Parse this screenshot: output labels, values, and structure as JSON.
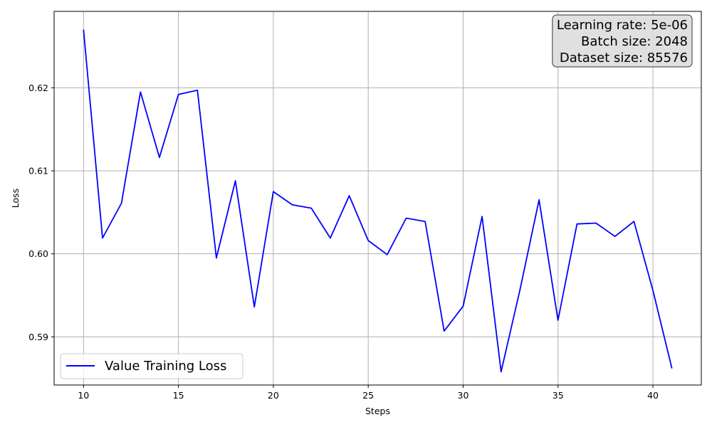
{
  "chart_data": {
    "type": "line",
    "title": "",
    "xlabel": "Steps",
    "ylabel": "Loss",
    "xlim": [
      8.45,
      42.55
    ],
    "ylim": [
      0.5842,
      0.6292
    ],
    "grid": true,
    "legend_position": "lower-left",
    "x_ticks": [
      10,
      15,
      20,
      25,
      30,
      35,
      40
    ],
    "y_ticks": [
      0.59,
      0.6,
      0.61,
      0.62
    ],
    "y_tick_labels": [
      "0.59",
      "0.60",
      "0.61",
      "0.62"
    ],
    "series": [
      {
        "name": "Value Training Loss",
        "color": "#0000ff",
        "x": [
          10,
          11,
          12,
          13,
          14,
          15,
          16,
          17,
          18,
          19,
          20,
          21,
          22,
          23,
          24,
          25,
          26,
          27,
          28,
          29,
          30,
          31,
          32,
          33,
          34,
          35,
          36,
          37,
          38,
          39,
          40,
          41
        ],
        "y": [
          0.627,
          0.6019,
          0.6061,
          0.6195,
          0.6116,
          0.6192,
          0.6197,
          0.5995,
          0.6088,
          0.5936,
          0.6075,
          0.6059,
          0.6055,
          0.6019,
          0.607,
          0.6016,
          0.5999,
          0.6043,
          0.6039,
          0.5907,
          0.5937,
          0.6045,
          0.5858,
          0.5957,
          0.6065,
          0.592,
          0.6036,
          0.6037,
          0.6021,
          0.6039,
          0.5956,
          0.5862
        ]
      }
    ],
    "annotation": {
      "lines": [
        "Learning rate: 5e-06",
        "Batch size: 2048",
        "Dataset size: 85576"
      ],
      "position": "top-right",
      "background": "#dddddd"
    }
  }
}
